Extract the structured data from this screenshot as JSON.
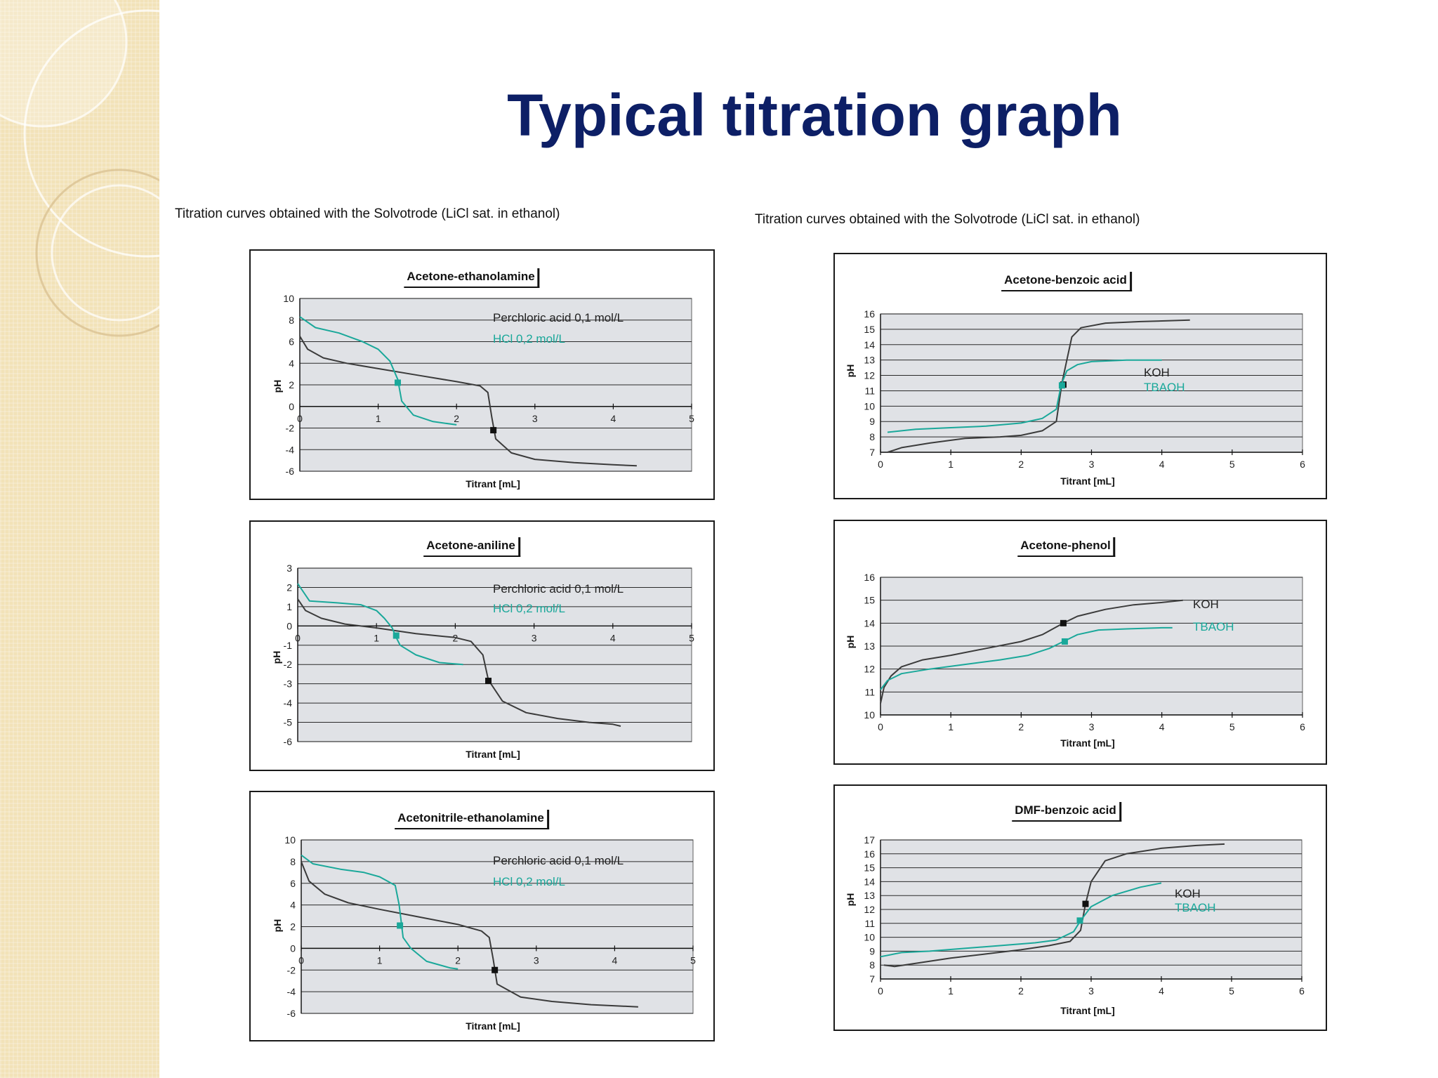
{
  "slide": {
    "title": "Typical titration graph",
    "caption_left": "Titration curves obtained with the Solvotrode (LiCl sat. in ethanol)",
    "caption_right": "Titration curves obtained with the Solvotrode (LiCl sat. in ethanol)"
  },
  "colors": {
    "dark": "#3b3b3b",
    "teal": "#1aa89a",
    "plot_bg": "#e0e2e6",
    "title": "#0d1f66"
  },
  "chart_data": [
    {
      "type": "line",
      "title": "Acetone-ethanolamine",
      "xlabel": "Titrant [mL]",
      "ylabel": "pH",
      "xlim": [
        0,
        5
      ],
      "ylim": [
        -6,
        10
      ],
      "xticks": [
        0,
        1,
        2,
        3,
        4,
        5
      ],
      "yticks": [
        -6,
        -4,
        -2,
        0,
        2,
        4,
        6,
        8,
        10
      ],
      "x_axis_at": 0,
      "grid": true,
      "legend": "inside-top-right",
      "series": [
        {
          "name": "Perchloric acid 0,1 mol/L",
          "color": "dark",
          "points": [
            [
              0,
              6.5
            ],
            [
              0.1,
              5.3
            ],
            [
              0.3,
              4.5
            ],
            [
              0.6,
              4.0
            ],
            [
              1.0,
              3.5
            ],
            [
              1.5,
              2.9
            ],
            [
              2.0,
              2.3
            ],
            [
              2.3,
              1.9
            ],
            [
              2.4,
              1.3
            ],
            [
              2.45,
              -1.0
            ],
            [
              2.5,
              -3.0
            ],
            [
              2.7,
              -4.3
            ],
            [
              3.0,
              -4.9
            ],
            [
              3.5,
              -5.2
            ],
            [
              4.0,
              -5.4
            ],
            [
              4.3,
              -5.5
            ]
          ],
          "endpoint": [
            2.47,
            -2.2
          ]
        },
        {
          "name": "HCl 0,2 mol/L",
          "color": "teal",
          "points": [
            [
              0,
              8.3
            ],
            [
              0.2,
              7.3
            ],
            [
              0.5,
              6.8
            ],
            [
              0.8,
              6.0
            ],
            [
              1.0,
              5.3
            ],
            [
              1.15,
              4.2
            ],
            [
              1.25,
              2.5
            ],
            [
              1.3,
              0.5
            ],
            [
              1.45,
              -0.8
            ],
            [
              1.7,
              -1.4
            ],
            [
              2.0,
              -1.7
            ]
          ],
          "endpoint": [
            1.25,
            2.2
          ]
        }
      ]
    },
    {
      "type": "line",
      "title": "Acetone-aniline",
      "xlabel": "Titrant [mL]",
      "ylabel": "pH",
      "xlim": [
        0,
        5
      ],
      "ylim": [
        -6,
        3
      ],
      "xticks": [
        0,
        1,
        2,
        3,
        4,
        5
      ],
      "yticks": [
        -6,
        -5,
        -4,
        -3,
        -2,
        -1,
        0,
        1,
        2,
        3
      ],
      "x_axis_at": 0,
      "grid": true,
      "legend": "inside-top-right",
      "series": [
        {
          "name": "Perchloric acid 0,1 mol/L",
          "color": "dark",
          "points": [
            [
              0,
              1.4
            ],
            [
              0.1,
              0.8
            ],
            [
              0.3,
              0.4
            ],
            [
              0.6,
              0.1
            ],
            [
              1.0,
              -0.1
            ],
            [
              1.5,
              -0.4
            ],
            [
              2.0,
              -0.6
            ],
            [
              2.2,
              -0.8
            ],
            [
              2.35,
              -1.5
            ],
            [
              2.42,
              -2.8
            ],
            [
              2.6,
              -3.9
            ],
            [
              2.9,
              -4.5
            ],
            [
              3.3,
              -4.8
            ],
            [
              3.7,
              -5.0
            ],
            [
              4.0,
              -5.1
            ],
            [
              4.1,
              -5.2
            ]
          ],
          "endpoint": [
            2.42,
            -2.85
          ]
        },
        {
          "name": "HCl 0,2 mol/L",
          "color": "teal",
          "points": [
            [
              0,
              2.2
            ],
            [
              0.15,
              1.3
            ],
            [
              0.5,
              1.2
            ],
            [
              0.8,
              1.1
            ],
            [
              1.0,
              0.8
            ],
            [
              1.1,
              0.4
            ],
            [
              1.2,
              -0.1
            ],
            [
              1.25,
              -0.6
            ],
            [
              1.3,
              -1.0
            ],
            [
              1.5,
              -1.5
            ],
            [
              1.8,
              -1.9
            ],
            [
              2.1,
              -2.0
            ]
          ],
          "endpoint": [
            1.25,
            -0.5
          ]
        }
      ]
    },
    {
      "type": "line",
      "title": "Acetonitrile-ethanolamine",
      "xlabel": "Titrant [mL]",
      "ylabel": "pH",
      "xlim": [
        0,
        5
      ],
      "ylim": [
        -6,
        10
      ],
      "xticks": [
        0,
        1,
        2,
        3,
        4,
        5
      ],
      "yticks": [
        -6,
        -4,
        -2,
        0,
        2,
        4,
        6,
        8,
        10
      ],
      "x_axis_at": 0,
      "grid": true,
      "legend": "inside-top-right",
      "series": [
        {
          "name": "Perchloric acid 0,1 mol/L",
          "color": "dark",
          "points": [
            [
              0,
              8.0
            ],
            [
              0.1,
              6.2
            ],
            [
              0.3,
              5.0
            ],
            [
              0.6,
              4.2
            ],
            [
              1.0,
              3.6
            ],
            [
              1.5,
              2.9
            ],
            [
              2.0,
              2.2
            ],
            [
              2.3,
              1.6
            ],
            [
              2.4,
              1.0
            ],
            [
              2.45,
              -1.0
            ],
            [
              2.5,
              -3.3
            ],
            [
              2.8,
              -4.5
            ],
            [
              3.2,
              -4.9
            ],
            [
              3.7,
              -5.2
            ],
            [
              4.3,
              -5.4
            ]
          ],
          "endpoint": [
            2.47,
            -2.0
          ]
        },
        {
          "name": "HCl 0,2 mol/L",
          "color": "teal",
          "points": [
            [
              0,
              8.6
            ],
            [
              0.15,
              7.8
            ],
            [
              0.5,
              7.3
            ],
            [
              0.8,
              7.0
            ],
            [
              1.0,
              6.6
            ],
            [
              1.2,
              5.8
            ],
            [
              1.25,
              4.0
            ],
            [
              1.3,
              1.0
            ],
            [
              1.4,
              0
            ],
            [
              1.6,
              -1.2
            ],
            [
              1.9,
              -1.8
            ],
            [
              2.0,
              -1.9
            ]
          ],
          "endpoint": [
            1.26,
            2.1
          ]
        }
      ]
    },
    {
      "type": "line",
      "title": "Acetone-benzoic acid",
      "xlabel": "Titrant [mL]",
      "ylabel": "pH",
      "xlim": [
        0,
        6
      ],
      "ylim": [
        7,
        16
      ],
      "xticks": [
        0,
        1,
        2,
        3,
        4,
        5,
        6
      ],
      "yticks": [
        7,
        8,
        9,
        10,
        11,
        12,
        13,
        14,
        15,
        16
      ],
      "x_axis_at": 7,
      "grid": true,
      "legend": "inside-right",
      "series": [
        {
          "name": "KOH",
          "color": "dark",
          "points": [
            [
              0.1,
              7.0
            ],
            [
              0.3,
              7.3
            ],
            [
              0.7,
              7.6
            ],
            [
              1.2,
              7.9
            ],
            [
              1.7,
              8.0
            ],
            [
              2.0,
              8.1
            ],
            [
              2.3,
              8.4
            ],
            [
              2.5,
              9.0
            ],
            [
              2.58,
              11.5
            ],
            [
              2.65,
              13.0
            ],
            [
              2.72,
              14.5
            ],
            [
              2.85,
              15.1
            ],
            [
              3.2,
              15.4
            ],
            [
              3.7,
              15.5
            ],
            [
              4.4,
              15.6
            ]
          ],
          "endpoint": [
            2.6,
            11.4
          ]
        },
        {
          "name": "TBAOH",
          "color": "teal",
          "points": [
            [
              0.1,
              8.3
            ],
            [
              0.5,
              8.5
            ],
            [
              1.0,
              8.6
            ],
            [
              1.5,
              8.7
            ],
            [
              2.0,
              8.9
            ],
            [
              2.3,
              9.2
            ],
            [
              2.5,
              9.8
            ],
            [
              2.57,
              11.4
            ],
            [
              2.65,
              12.3
            ],
            [
              2.8,
              12.7
            ],
            [
              3.0,
              12.9
            ],
            [
              3.5,
              13.0
            ],
            [
              4.0,
              13.0
            ]
          ],
          "endpoint": [
            2.58,
            11.35
          ]
        }
      ]
    },
    {
      "type": "line",
      "title": "Acetone-phenol",
      "xlabel": "Titrant [mL]",
      "ylabel": "pH",
      "xlim": [
        0,
        6
      ],
      "ylim": [
        10,
        16
      ],
      "xticks": [
        0,
        1,
        2,
        3,
        4,
        5,
        6
      ],
      "yticks": [
        10,
        11,
        12,
        13,
        14,
        15,
        16
      ],
      "x_axis_at": 10,
      "grid": true,
      "legend": "inside-right",
      "series": [
        {
          "name": "KOH",
          "color": "dark",
          "points": [
            [
              0,
              10.5
            ],
            [
              0.05,
              11.2
            ],
            [
              0.15,
              11.7
            ],
            [
              0.3,
              12.1
            ],
            [
              0.6,
              12.4
            ],
            [
              1.0,
              12.6
            ],
            [
              1.5,
              12.9
            ],
            [
              2.0,
              13.2
            ],
            [
              2.3,
              13.5
            ],
            [
              2.6,
              14.0
            ],
            [
              2.8,
              14.3
            ],
            [
              3.2,
              14.6
            ],
            [
              3.6,
              14.8
            ],
            [
              4.0,
              14.9
            ],
            [
              4.3,
              15.0
            ]
          ],
          "endpoint": [
            2.6,
            14.0
          ]
        },
        {
          "name": "TBAOH",
          "color": "teal",
          "points": [
            [
              0,
              11.1
            ],
            [
              0.1,
              11.5
            ],
            [
              0.3,
              11.8
            ],
            [
              0.7,
              12.0
            ],
            [
              1.2,
              12.2
            ],
            [
              1.7,
              12.4
            ],
            [
              2.1,
              12.6
            ],
            [
              2.4,
              12.9
            ],
            [
              2.6,
              13.2
            ],
            [
              2.8,
              13.5
            ],
            [
              3.1,
              13.7
            ],
            [
              3.5,
              13.75
            ],
            [
              4.0,
              13.8
            ],
            [
              4.15,
              13.8
            ]
          ],
          "endpoint": [
            2.62,
            13.2
          ]
        }
      ]
    },
    {
      "type": "line",
      "title": "DMF-benzoic acid",
      "xlabel": "Titrant [mL]",
      "ylabel": "pH",
      "xlim": [
        0,
        6
      ],
      "ylim": [
        7,
        17
      ],
      "xticks": [
        0,
        1,
        2,
        3,
        4,
        5,
        6
      ],
      "yticks": [
        7,
        8,
        9,
        10,
        11,
        12,
        13,
        14,
        15,
        16,
        17
      ],
      "x_axis_at": 7,
      "grid": true,
      "legend": "inside-right",
      "series": [
        {
          "name": "KOH",
          "color": "dark",
          "points": [
            [
              0.05,
              8.0
            ],
            [
              0.2,
              7.9
            ],
            [
              0.6,
              8.2
            ],
            [
              1.0,
              8.5
            ],
            [
              1.5,
              8.8
            ],
            [
              2.0,
              9.1
            ],
            [
              2.4,
              9.4
            ],
            [
              2.7,
              9.7
            ],
            [
              2.85,
              10.5
            ],
            [
              2.92,
              12.4
            ],
            [
              3.0,
              14.0
            ],
            [
              3.2,
              15.5
            ],
            [
              3.5,
              16.0
            ],
            [
              4.0,
              16.4
            ],
            [
              4.5,
              16.6
            ],
            [
              4.9,
              16.7
            ]
          ],
          "endpoint": [
            2.92,
            12.4
          ]
        },
        {
          "name": "TBAOH",
          "color": "teal",
          "points": [
            [
              0,
              8.6
            ],
            [
              0.3,
              8.9
            ],
            [
              0.7,
              9.0
            ],
            [
              1.2,
              9.2
            ],
            [
              1.7,
              9.4
            ],
            [
              2.2,
              9.6
            ],
            [
              2.5,
              9.8
            ],
            [
              2.75,
              10.4
            ],
            [
              2.85,
              11.2
            ],
            [
              3.0,
              12.2
            ],
            [
              3.3,
              13.0
            ],
            [
              3.7,
              13.6
            ],
            [
              4.0,
              13.9
            ]
          ],
          "endpoint": [
            2.84,
            11.2
          ]
        }
      ]
    }
  ]
}
